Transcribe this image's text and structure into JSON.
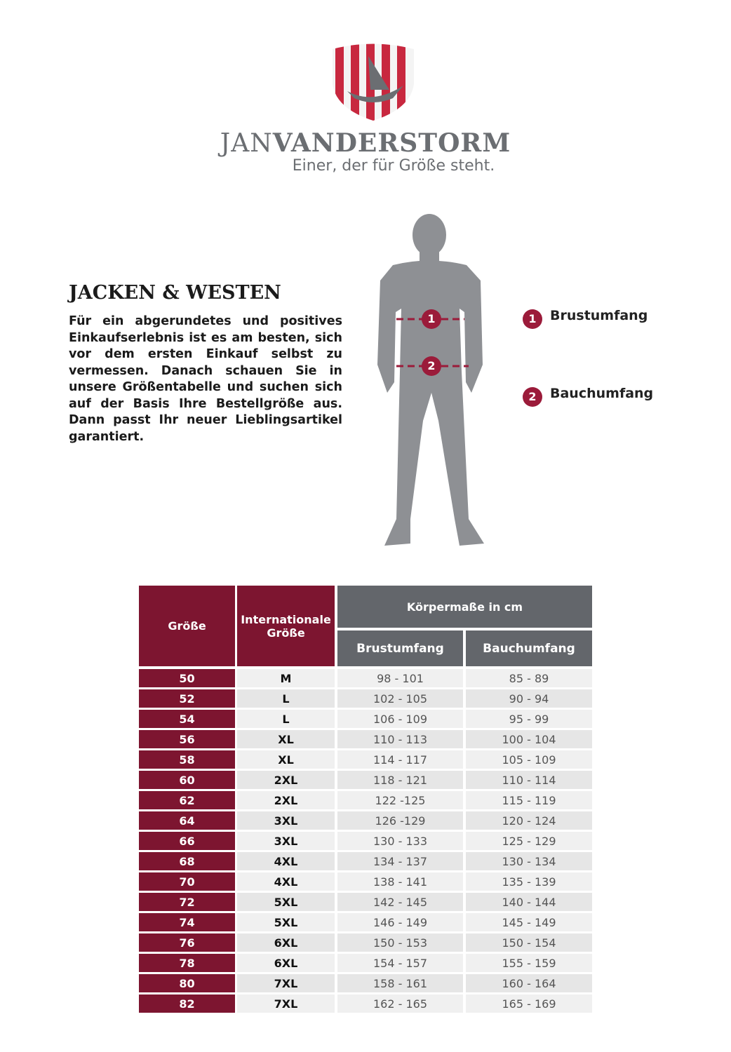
{
  "header": {
    "brand_first": "JAN",
    "brand_second": "VANDERSTORM",
    "tagline": "Einer, der für Größe steht."
  },
  "intro": {
    "title": "JACKEN & WESTEN",
    "text": "Für ein abgerundetes und positives Einkaufserlebnis ist es am besten, sich vor dem ersten Einkauf selbst zu vermessen. Danach schauen Sie in unsere Größentabelle und suchen sich auf der Basis Ihre Bestellgröße aus. Dann passt Ihr neuer Lieblingsartikel garantiert."
  },
  "legend": {
    "items": [
      {
        "number": "1",
        "label": "Brustumfang"
      },
      {
        "number": "2",
        "label": "Bauchumfang"
      }
    ]
  },
  "table": {
    "headers": {
      "size": "Größe",
      "international": "Internationale Größe",
      "group": "Körpermaße in cm",
      "chest": "Brustumfang",
      "belly": "Bauchumfang"
    },
    "rows": [
      [
        "50",
        "M",
        "98 - 101",
        "85 - 89"
      ],
      [
        "52",
        "L",
        "102 - 105",
        "90 - 94"
      ],
      [
        "54",
        "L",
        "106 - 109",
        "95 - 99"
      ],
      [
        "56",
        "XL",
        "110 - 113",
        "100 - 104"
      ],
      [
        "58",
        "XL",
        "114 - 117",
        "105 - 109"
      ],
      [
        "60",
        "2XL",
        "118 - 121",
        "110 - 114"
      ],
      [
        "62",
        "2XL",
        "122 -125",
        "115 - 119"
      ],
      [
        "64",
        "3XL",
        "126 -129",
        "120 - 124"
      ],
      [
        "66",
        "3XL",
        "130 - 133",
        "125 - 129"
      ],
      [
        "68",
        "4XL",
        "134 - 137",
        "130 - 134"
      ],
      [
        "70",
        "4XL",
        "138 - 141",
        "135 - 139"
      ],
      [
        "72",
        "5XL",
        "142 - 145",
        "140 - 144"
      ],
      [
        "74",
        "5XL",
        "146 - 149",
        "145 - 149"
      ],
      [
        "76",
        "6XL",
        "150 - 153",
        "150 - 154"
      ],
      [
        "78",
        "6XL",
        "154 - 157",
        "155 - 159"
      ],
      [
        "80",
        "7XL",
        "158 - 161",
        "160 - 164"
      ],
      [
        "82",
        "7XL",
        "162 - 165",
        "165 - 169"
      ]
    ]
  }
}
